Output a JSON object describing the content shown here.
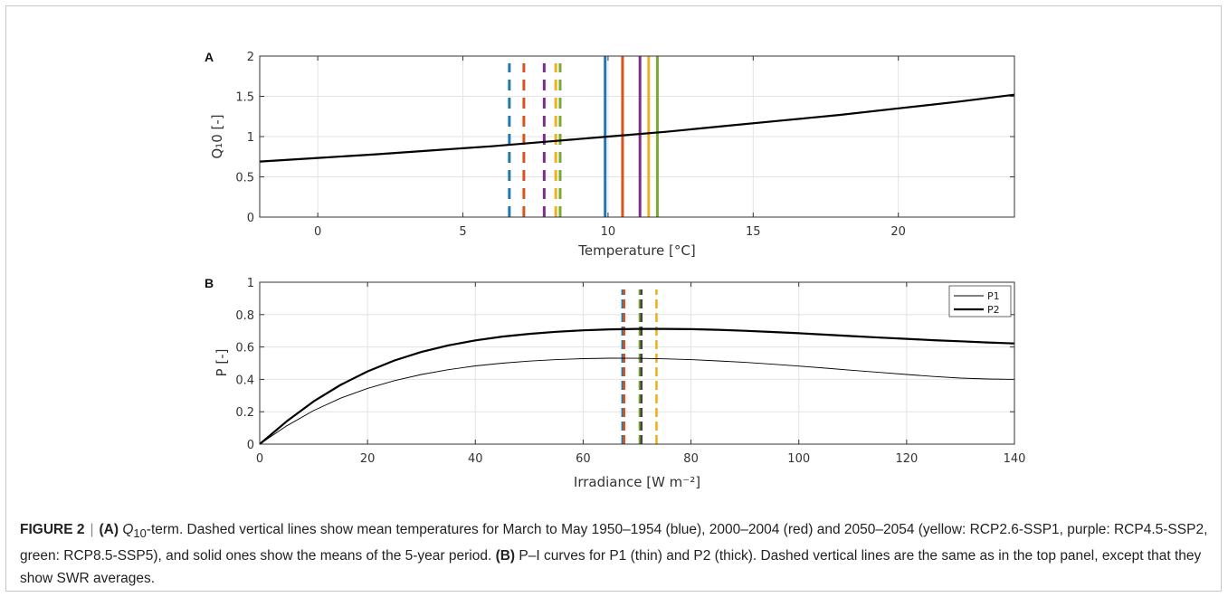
{
  "chart_data": [
    {
      "panel": "A",
      "type": "line",
      "xlabel": "Temperature [°C]",
      "ylabel": "Q₁0 [-]",
      "xlim": [
        -2,
        24
      ],
      "ylim": [
        0,
        2
      ],
      "xticks": [
        0,
        5,
        10,
        15,
        20
      ],
      "yticks": [
        0,
        0.5,
        1,
        1.5,
        2
      ],
      "grid": true,
      "series": [
        {
          "color": "#000000",
          "style": "solid",
          "x": [
            -2,
            0,
            2,
            4,
            6,
            8,
            10,
            12,
            14,
            16,
            18,
            20,
            22,
            24
          ],
          "y": [
            0.69,
            0.735,
            0.78,
            0.83,
            0.88,
            0.94,
            1.0,
            1.06,
            1.13,
            1.2,
            1.27,
            1.35,
            1.43,
            1.52
          ]
        }
      ],
      "vlines": [
        {
          "x": 6.6,
          "color": "#1f77b4",
          "style": "dashed"
        },
        {
          "x": 7.1,
          "color": "#d9531e",
          "style": "dashed"
        },
        {
          "x": 7.8,
          "color": "#7e2f8e",
          "style": "dashed"
        },
        {
          "x": 8.2,
          "color": "#edb120",
          "style": "dashed"
        },
        {
          "x": 8.35,
          "color": "#77ac30",
          "style": "dashed"
        },
        {
          "x": 9.9,
          "color": "#1f77b4",
          "style": "solid"
        },
        {
          "x": 10.5,
          "color": "#d9531e",
          "style": "solid"
        },
        {
          "x": 11.1,
          "color": "#7e2f8e",
          "style": "solid"
        },
        {
          "x": 11.4,
          "color": "#edb120",
          "style": "solid"
        },
        {
          "x": 11.7,
          "color": "#77ac30",
          "style": "solid"
        }
      ]
    },
    {
      "panel": "B",
      "type": "line",
      "xlabel": "Irradiance [W m⁻²]",
      "ylabel": "P [-]",
      "xlim": [
        0,
        140
      ],
      "ylim": [
        0,
        1
      ],
      "xticks": [
        0,
        20,
        40,
        60,
        80,
        100,
        120,
        140
      ],
      "yticks": [
        0,
        0.2,
        0.4,
        0.6,
        0.8,
        1
      ],
      "grid": true,
      "legend": "top-right",
      "series": [
        {
          "name": "P1",
          "color": "#000000",
          "width": "thin",
          "x": [
            0,
            5,
            10,
            15,
            20,
            25,
            30,
            35,
            40,
            45,
            50,
            55,
            60,
            65,
            70,
            75,
            80,
            85,
            90,
            95,
            100,
            105,
            110,
            115,
            120,
            125,
            130,
            135,
            140
          ],
          "y": [
            0,
            0.113,
            0.207,
            0.284,
            0.344,
            0.392,
            0.43,
            0.46,
            0.483,
            0.5,
            0.513,
            0.522,
            0.528,
            0.531,
            0.53,
            0.527,
            0.522,
            0.514,
            0.505,
            0.494,
            0.482,
            0.469,
            0.456,
            0.443,
            0.43,
            0.418,
            0.408,
            0.402,
            0.4
          ]
        },
        {
          "name": "P2",
          "color": "#000000",
          "width": "thick",
          "x": [
            0,
            5,
            10,
            15,
            20,
            25,
            30,
            35,
            40,
            45,
            50,
            55,
            60,
            65,
            70,
            75,
            80,
            85,
            90,
            95,
            100,
            105,
            110,
            115,
            120,
            125,
            130,
            135,
            140
          ],
          "y": [
            0,
            0.141,
            0.264,
            0.366,
            0.449,
            0.517,
            0.569,
            0.61,
            0.641,
            0.664,
            0.681,
            0.694,
            0.703,
            0.709,
            0.712,
            0.712,
            0.71,
            0.706,
            0.7,
            0.693,
            0.685,
            0.676,
            0.667,
            0.658,
            0.65,
            0.642,
            0.635,
            0.628,
            0.622
          ]
        }
      ],
      "vlines": [
        {
          "x": 67.3,
          "color": "#1f77b4",
          "style": "dashed"
        },
        {
          "x": 67.6,
          "color": "#d9531e",
          "style": "dashed"
        },
        {
          "x": 70.5,
          "color": "#77ac30",
          "style": "dashed"
        },
        {
          "x": 70.8,
          "color": "#444444",
          "style": "dashed"
        },
        {
          "x": 73.6,
          "color": "#edb120",
          "style": "dashed"
        }
      ]
    }
  ],
  "figure": {
    "panel_a_label": "A",
    "panel_b_label": "B"
  },
  "caption": {
    "figure_label": "FIGURE 2",
    "separator": "|",
    "part_a": "(A)",
    "q10_Q": "Q",
    "q10_sub": "10",
    "text_a": "-term. Dashed vertical lines show mean temperatures for March to May 1950–1954 (blue), 2000–2004 (red) and 2050–2054 (yellow: RCP2.6-SSP1, purple: RCP4.5-SSP2, green: RCP8.5-SSP5), and solid ones show the means of the 5-year period.",
    "part_b": "(B)",
    "text_b": "P–I curves for P1 (thin) and P2 (thick). Dashed vertical lines are the same as in the top panel, except that they show SWR averages."
  }
}
